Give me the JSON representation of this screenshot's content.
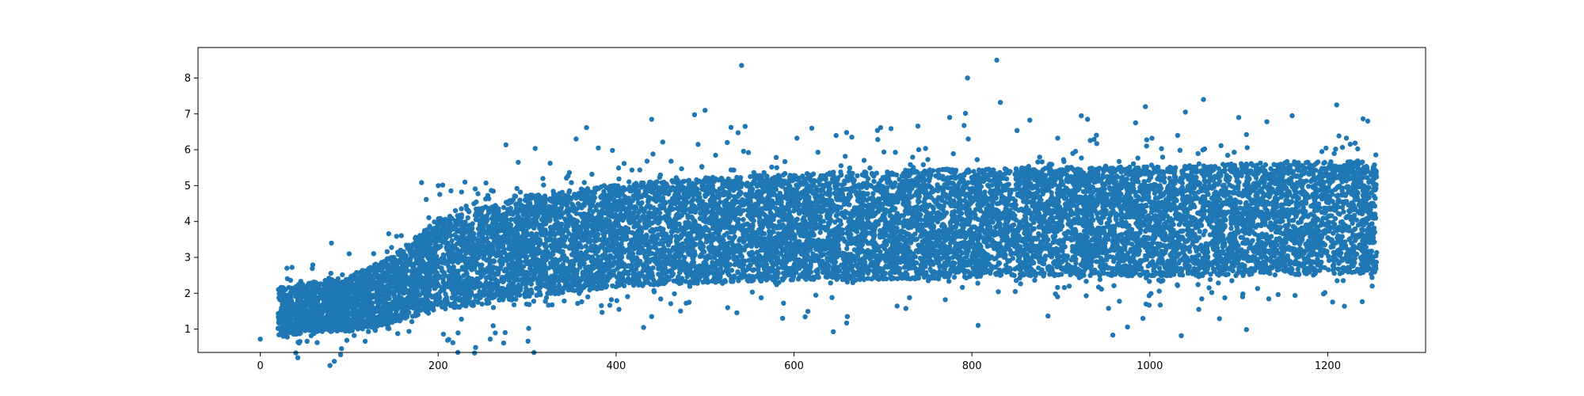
{
  "chart_data": {
    "type": "scatter",
    "title": "",
    "xlabel": "",
    "ylabel": "",
    "xlim": [
      -70,
      1310
    ],
    "ylim": [
      0.35,
      8.85
    ],
    "xticks": [
      0,
      200,
      400,
      600,
      800,
      1000,
      1200
    ],
    "yticks": [
      1,
      2,
      3,
      4,
      5,
      6,
      7,
      8
    ],
    "grid": false,
    "legend": null,
    "colors": {
      "marker": "#1f77b4",
      "axes": "#000000",
      "background": "#ffffff"
    },
    "point_count_approx": 180000,
    "x_range": [
      20,
      1255
    ],
    "density_profile": {
      "x": [
        20,
        100,
        150,
        200,
        300,
        400,
        500,
        600,
        700,
        800,
        900,
        1000,
        1100,
        1200,
        1255
      ],
      "y_center": [
        1.5,
        1.7,
        2.1,
        2.8,
        3.3,
        3.6,
        3.75,
        3.85,
        3.9,
        3.95,
        4.0,
        4.0,
        4.05,
        4.1,
        4.1
      ],
      "y_spread": [
        0.7,
        0.8,
        1.0,
        1.35,
        1.5,
        1.5,
        1.55,
        1.55,
        1.6,
        1.6,
        1.6,
        1.6,
        1.65,
        1.65,
        1.65
      ]
    },
    "points": [
      {
        "x": 0,
        "y": 0.72
      },
      {
        "x": 30,
        "y": 2.7
      },
      {
        "x": 80,
        "y": 3.4
      },
      {
        "x": 100,
        "y": 3.1
      },
      {
        "x": 200,
        "y": 5.0
      },
      {
        "x": 230,
        "y": 5.1
      },
      {
        "x": 290,
        "y": 5.65
      },
      {
        "x": 355,
        "y": 6.3
      },
      {
        "x": 380,
        "y": 6.05
      },
      {
        "x": 440,
        "y": 6.85
      },
      {
        "x": 440,
        "y": 1.35
      },
      {
        "x": 500,
        "y": 7.1
      },
      {
        "x": 545,
        "y": 6.65
      },
      {
        "x": 620,
        "y": 6.6
      },
      {
        "x": 660,
        "y": 1.35
      },
      {
        "x": 665,
        "y": 6.35
      },
      {
        "x": 775,
        "y": 6.9
      },
      {
        "x": 795,
        "y": 8.0
      },
      {
        "x": 828,
        "y": 8.5
      },
      {
        "x": 930,
        "y": 6.85
      },
      {
        "x": 995,
        "y": 7.2
      },
      {
        "x": 1040,
        "y": 7.05
      },
      {
        "x": 1055,
        "y": 1.55
      },
      {
        "x": 1100,
        "y": 6.9
      },
      {
        "x": 1160,
        "y": 6.95
      },
      {
        "x": 1210,
        "y": 7.25
      },
      {
        "x": 1245,
        "y": 6.8
      },
      {
        "x": 1250,
        "y": 2.2
      }
    ]
  }
}
